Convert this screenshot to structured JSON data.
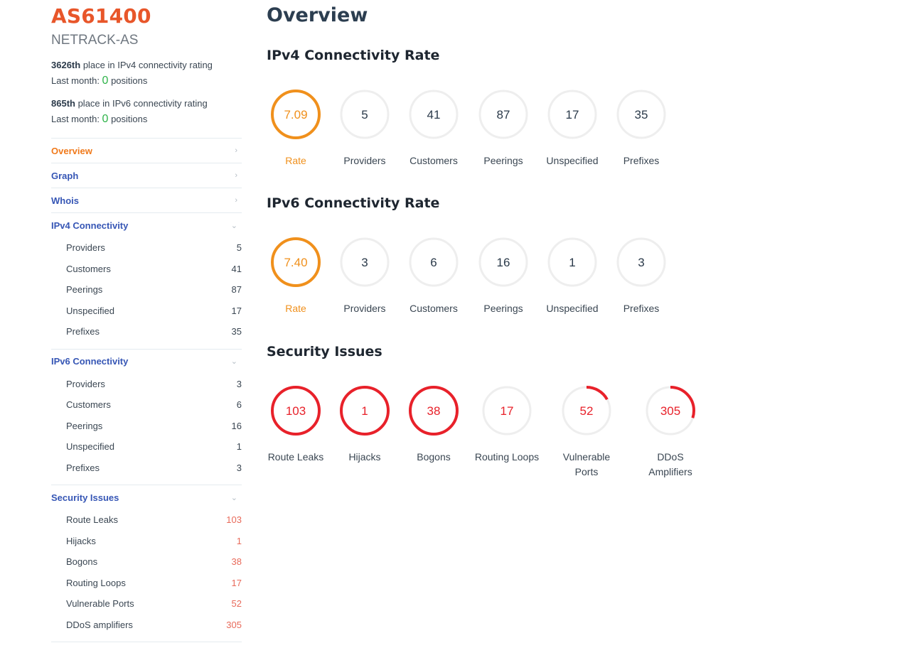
{
  "header": {
    "as_number": "AS61400",
    "as_name": "NETRACK-AS",
    "ipv4_rating": {
      "place": "3626th",
      "text": " place in IPv4 connectivity rating",
      "last_month_label": "Last month: ",
      "change": "0",
      "suffix": " positions"
    },
    "ipv6_rating": {
      "place": "865th",
      "text": " place in IPv6 connectivity rating",
      "last_month_label": "Last month: ",
      "change": "0",
      "suffix": " positions"
    }
  },
  "sidebar": {
    "overview": "Overview",
    "graph": "Graph",
    "whois": "Whois",
    "ipv4": {
      "label": "IPv4 Connectivity",
      "items": [
        {
          "label": "Providers",
          "value": "5"
        },
        {
          "label": "Customers",
          "value": "41"
        },
        {
          "label": "Peerings",
          "value": "87"
        },
        {
          "label": "Unspecified",
          "value": "17"
        },
        {
          "label": "Prefixes",
          "value": "35"
        }
      ]
    },
    "ipv6": {
      "label": "IPv6 Connectivity",
      "items": [
        {
          "label": "Providers",
          "value": "3"
        },
        {
          "label": "Customers",
          "value": "6"
        },
        {
          "label": "Peerings",
          "value": "16"
        },
        {
          "label": "Unspecified",
          "value": "1"
        },
        {
          "label": "Prefixes",
          "value": "3"
        }
      ]
    },
    "security": {
      "label": "Security Issues",
      "items": [
        {
          "label": "Route Leaks",
          "value": "103"
        },
        {
          "label": "Hijacks",
          "value": "1"
        },
        {
          "label": "Bogons",
          "value": "38"
        },
        {
          "label": "Routing Loops",
          "value": "17"
        },
        {
          "label": "Vulnerable Ports",
          "value": "52"
        },
        {
          "label": "DDoS amplifiers",
          "value": "305"
        }
      ]
    }
  },
  "main": {
    "title": "Overview",
    "ipv4_title": "IPv4 Connectivity Rate",
    "ipv6_title": "IPv6 Connectivity Rate",
    "security_title": "Security Issues",
    "ipv4_metrics": [
      {
        "value": "7.09",
        "label": "Rate",
        "fill": 1.0,
        "kind": "rate"
      },
      {
        "value": "5",
        "label": "Providers",
        "fill": 0,
        "kind": "plain"
      },
      {
        "value": "41",
        "label": "Customers",
        "fill": 0,
        "kind": "plain"
      },
      {
        "value": "87",
        "label": "Peerings",
        "fill": 0,
        "kind": "plain"
      },
      {
        "value": "17",
        "label": "Unspecified",
        "fill": 0,
        "kind": "plain"
      },
      {
        "value": "35",
        "label": "Prefixes",
        "fill": 0,
        "kind": "plain"
      }
    ],
    "ipv6_metrics": [
      {
        "value": "7.40",
        "label": "Rate",
        "fill": 1.0,
        "kind": "rate"
      },
      {
        "value": "3",
        "label": "Providers",
        "fill": 0,
        "kind": "plain"
      },
      {
        "value": "6",
        "label": "Customers",
        "fill": 0,
        "kind": "plain"
      },
      {
        "value": "16",
        "label": "Peerings",
        "fill": 0,
        "kind": "plain"
      },
      {
        "value": "1",
        "label": "Unspecified",
        "fill": 0,
        "kind": "plain"
      },
      {
        "value": "3",
        "label": "Prefixes",
        "fill": 0,
        "kind": "plain"
      }
    ],
    "security_metrics": [
      {
        "value": "103",
        "label": "Route Leaks",
        "fill": 1.0,
        "kind": "issue"
      },
      {
        "value": "1",
        "label": "Hijacks",
        "fill": 1.0,
        "kind": "issue"
      },
      {
        "value": "38",
        "label": "Bogons",
        "fill": 1.0,
        "kind": "issue"
      },
      {
        "value": "17",
        "label": "Routing Loops",
        "fill": 0,
        "kind": "issue"
      },
      {
        "value": "52",
        "label": "Vulnerable Ports",
        "fill": 0.17,
        "kind": "issue"
      },
      {
        "value": "305",
        "label": "DDoS Amplifiers",
        "fill": 0.3,
        "kind": "issue"
      }
    ]
  },
  "colors": {
    "brand": "#e8562a",
    "link": "#3656b5",
    "active": "#f07a1c",
    "rate_ring": "#f0901c",
    "issue": "#e8212a",
    "track": "#eeeeee",
    "positive": "#2fb34a"
  },
  "icons": {
    "chevron_right": "chevron-right-icon",
    "chevron_down": "chevron-down-icon"
  }
}
